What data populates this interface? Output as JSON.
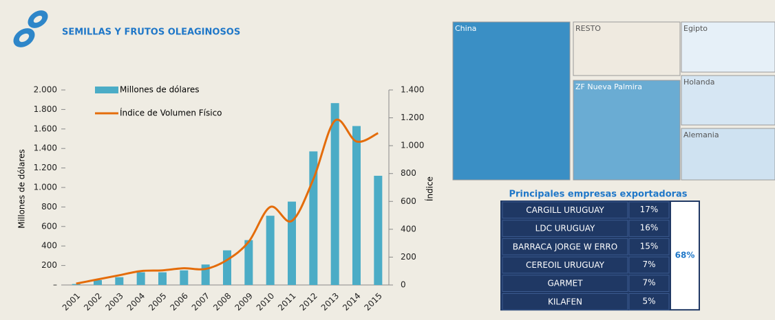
{
  "header": {
    "title": "SEMILLAS Y FRUTOS OLEAGINOSOS"
  },
  "chart_data": {
    "type": "bar-line",
    "ylabel": "Millones de dólares",
    "y2label": "Índice",
    "categories": [
      "2001",
      "2002",
      "2003",
      "2004",
      "2005",
      "2006",
      "2007",
      "2008",
      "2009",
      "2010",
      "2011",
      "2012",
      "2013",
      "2014",
      "2015"
    ],
    "series": [
      {
        "name": "Millones de dólares",
        "type": "bar",
        "color": "#4bacc6",
        "values": [
          10,
          50,
          80,
          130,
          130,
          150,
          210,
          355,
          460,
          710,
          855,
          1370,
          1865,
          1630,
          1120
        ]
      },
      {
        "name": "Índice de Volumen Físico",
        "type": "line",
        "color": "#e46c0a",
        "axis": "y2",
        "values": [
          10,
          40,
          70,
          100,
          105,
          120,
          115,
          180,
          310,
          560,
          460,
          760,
          1180,
          1030,
          1090
        ]
      }
    ],
    "ylim": [
      0,
      2000
    ],
    "yticks": [
      {
        "value": 0,
        "label": "–"
      },
      200,
      400,
      600,
      800,
      {
        "value": 1000,
        "label": "1.000"
      },
      {
        "value": 1200,
        "label": "1.200"
      },
      {
        "value": 1400,
        "label": "1.400"
      },
      {
        "value": 1600,
        "label": "1.600"
      },
      {
        "value": 1800,
        "label": "1.800"
      },
      {
        "value": 2000,
        "label": "2.000"
      }
    ],
    "y2lim": [
      0,
      1400
    ],
    "y2ticks": [
      0,
      200,
      400,
      600,
      800,
      {
        "value": 1000,
        "label": "1.000"
      },
      {
        "value": 1200,
        "label": "1.200"
      },
      {
        "value": 1400,
        "label": "1.400"
      }
    ]
  },
  "treemap": {
    "nodes": [
      {
        "label": "China"
      },
      {
        "label": "RESTO"
      },
      {
        "label": "Egipto"
      },
      {
        "label": "ZF Nueva Palmira"
      },
      {
        "label": "Holanda"
      },
      {
        "label": "Alemania"
      }
    ]
  },
  "table": {
    "title": "Principales empresas exportadoras",
    "rows": [
      [
        "CARGILL URUGUAY",
        "17%"
      ],
      [
        "LDC URUGUAY",
        "16%"
      ],
      [
        "BARRACA JORGE W ERRO",
        "15%"
      ],
      [
        "CEREOIL URUGUAY",
        "7%"
      ],
      [
        "GARMET",
        "7%"
      ],
      [
        "KILAFEN",
        "5%"
      ]
    ],
    "total": "68%"
  }
}
